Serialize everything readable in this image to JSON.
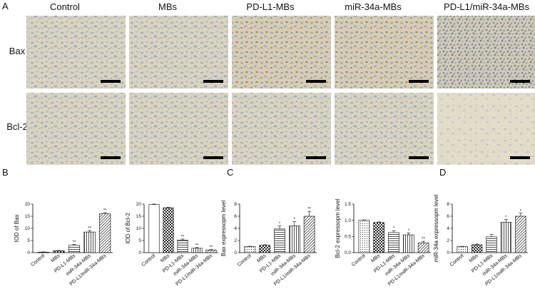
{
  "panel_a": {
    "letter": "A",
    "columns": [
      "Control",
      "MBs",
      "PD-L1-MBs",
      "miR-34a-MBs",
      "PD-L1/miR-34a-MBs"
    ],
    "rows": [
      "Bax",
      "Bcl-2"
    ]
  },
  "panel_letters": {
    "b": "B",
    "c": "C",
    "d": "D"
  },
  "colors": {
    "tissue": "#d9cfb8",
    "stain": "#8ea8c8",
    "brown": "#7a5a2a",
    "scale_bar": "#000000"
  },
  "chart_data": [
    {
      "type": "bar",
      "panel": "B",
      "categories": [
        "Control",
        "MBs",
        "PD-L1-MBs",
        "miR-34a-MBs",
        "PD-L1/miR-34a-MBs"
      ],
      "values": [
        0.2,
        0.8,
        3.0,
        8.5,
        16.0
      ],
      "errors": [
        0.1,
        0.1,
        0.4,
        0.6,
        0.5
      ],
      "significance": [
        "",
        "",
        "**",
        "**",
        "**"
      ],
      "ylabel": "IOD of Bax",
      "ylim": [
        0,
        20
      ],
      "yticks": [
        "0",
        "5",
        "10",
        "15",
        "20"
      ]
    },
    {
      "type": "bar",
      "panel": "B",
      "categories": [
        "Control",
        "MBs",
        "PD-L1-MBs",
        "miR-34a-MBs",
        "PD-L1/miR-34a-MBs"
      ],
      "values": [
        19.8,
        18.5,
        5.2,
        1.8,
        1.1
      ],
      "errors": [
        0.2,
        0.2,
        0.4,
        0.3,
        0.2
      ],
      "significance": [
        "",
        "",
        "**",
        "**",
        "**"
      ],
      "ylabel": "IOD of Bcl-2",
      "ylim": [
        0,
        20
      ],
      "yticks": [
        "0",
        "5",
        "10",
        "15",
        "20"
      ]
    },
    {
      "type": "bar",
      "panel": "C",
      "categories": [
        "Control",
        "MBs",
        "PD-L1-MBs",
        "miR-34a-MBs",
        "PD-L1/miR-34a-MBs"
      ],
      "values": [
        1.0,
        1.2,
        3.9,
        4.4,
        6.0
      ],
      "errors": [
        0.05,
        0.1,
        0.5,
        0.7,
        0.8
      ],
      "significance": [
        "",
        "",
        "*",
        "*",
        "**"
      ],
      "ylabel": "Bax expressopm level",
      "ylim": [
        0,
        8
      ],
      "yticks": [
        "0",
        "2",
        "4",
        "6",
        "8"
      ]
    },
    {
      "type": "bar",
      "panel": "C",
      "categories": [
        "Control",
        "MBs",
        "PD-L1-MBs",
        "miR-34a-MBs",
        "PD-L1/miR-34a-MBs"
      ],
      "values": [
        1.0,
        0.93,
        0.62,
        0.55,
        0.3
      ],
      "errors": [
        0.01,
        0.02,
        0.06,
        0.06,
        0.05
      ],
      "significance": [
        "",
        "",
        "*",
        "*",
        "**"
      ],
      "ylabel": "Bcl-2 expressopm level",
      "ylim": [
        0,
        1.5
      ],
      "yticks": [
        "0.0",
        "0.5",
        "1.0",
        "1.5"
      ]
    },
    {
      "type": "bar",
      "panel": "D",
      "categories": [
        "Control",
        "MBs",
        "PD-L1-MBs",
        "miR-34a-MBs",
        "PD-L1/miR-34a-MBs"
      ],
      "values": [
        1.0,
        1.3,
        2.6,
        5.0,
        6.0
      ],
      "errors": [
        0.05,
        0.1,
        0.4,
        0.5,
        0.5
      ],
      "significance": [
        "",
        "",
        "",
        "*",
        "*"
      ],
      "ylabel": "miR-34a expressopm level",
      "ylim": [
        0,
        8
      ],
      "yticks": [
        "0",
        "2",
        "4",
        "6",
        "8"
      ]
    }
  ]
}
